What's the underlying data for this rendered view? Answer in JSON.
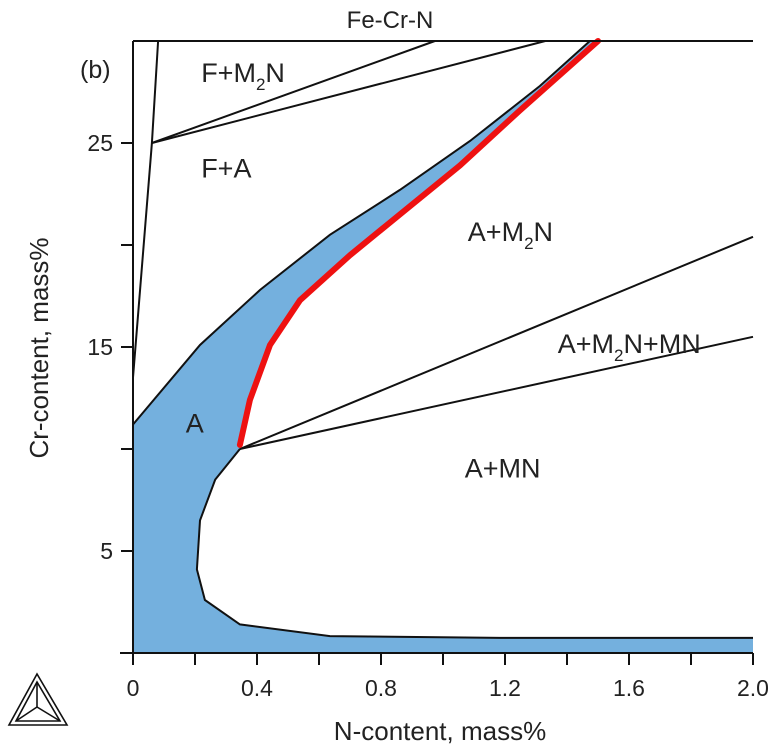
{
  "chart_data": {
    "type": "line",
    "title": "Fe-Cr-N",
    "panel_label": "(b)",
    "xlabel": "N-content, mass%",
    "ylabel": "Cr-content, mass%",
    "xlim": [
      0,
      2.0
    ],
    "ylim": [
      0,
      30
    ],
    "x_ticks": [
      0,
      0.2,
      0.4,
      0.6,
      0.8,
      1.0,
      1.2,
      1.4,
      1.6,
      1.8,
      2.0
    ],
    "x_tick_labels": [
      "0",
      "0.4",
      "0.8",
      "1.2",
      "1.6",
      "2.0"
    ],
    "x_tick_label_values": [
      0,
      0.4,
      0.8,
      1.2,
      1.6,
      2.0
    ],
    "y_ticks": [
      5,
      10,
      15,
      20,
      25
    ],
    "y_tick_labels": [
      "5",
      "15",
      "25"
    ],
    "y_tick_label_values": [
      5,
      15,
      25
    ],
    "grid": false,
    "colors": {
      "austenite_fill": "#74b0de",
      "highlight_line": "#ee1111",
      "line": "#111111"
    },
    "austenite_region": {
      "upper_boundary": [
        [
          0,
          11.2
        ],
        [
          0.216,
          15.1
        ],
        [
          0.41,
          17.8
        ],
        [
          0.635,
          20.5
        ],
        [
          0.861,
          22.7
        ],
        [
          1.087,
          25.1
        ],
        [
          1.313,
          27.8
        ],
        [
          1.474,
          30
        ]
      ],
      "lower_boundary": [
        [
          0.345,
          10.0
        ],
        [
          0.265,
          8.5
        ],
        [
          0.216,
          6.5
        ],
        [
          0.206,
          4.1
        ],
        [
          0.232,
          2.6
        ],
        [
          0.345,
          1.4
        ],
        [
          0.635,
          0.83
        ],
        [
          1.184,
          0.74
        ],
        [
          2.0,
          0.74
        ]
      ]
    },
    "red_line": [
      [
        0.345,
        10.2
      ],
      [
        0.377,
        12.4
      ],
      [
        0.442,
        15.1
      ],
      [
        0.539,
        17.3
      ],
      [
        0.7,
        19.5
      ],
      [
        0.861,
        21.5
      ],
      [
        1.055,
        23.9
      ],
      [
        1.248,
        26.6
      ],
      [
        1.5,
        30
      ]
    ],
    "boundary_lines": [
      [
        [
          0,
          13.5
        ],
        [
          0.061,
          25
        ],
        [
          0.081,
          30
        ]
      ],
      [
        [
          0.061,
          25
        ],
        [
          0.974,
          30
        ]
      ],
      [
        [
          0.061,
          25
        ],
        [
          1.33,
          30
        ]
      ],
      [
        [
          0.345,
          10.0
        ],
        [
          2.0,
          20.4
        ]
      ],
      [
        [
          0.345,
          10.0
        ],
        [
          2.0,
          15.5
        ]
      ]
    ],
    "region_labels": [
      {
        "name": "f-m2n",
        "main": "F+M",
        "sub": "2",
        "tail": "N",
        "at": [
          0.22,
          28
        ]
      },
      {
        "name": "f-a",
        "main": "F+A",
        "sub": "",
        "tail": "",
        "at": [
          0.22,
          23.3
        ]
      },
      {
        "name": "a-m2n",
        "main": "A+M",
        "sub": "2",
        "tail": "N",
        "at": [
          1.08,
          20.2
        ]
      },
      {
        "name": "a-m2n-mn",
        "main": "A+M",
        "sub": "2",
        "tail": "N+MN",
        "at": [
          1.37,
          14.7
        ]
      },
      {
        "name": "a-mn",
        "main": "A+MN",
        "sub": "",
        "tail": "",
        "at": [
          1.07,
          8.6
        ]
      },
      {
        "name": "a",
        "main": "A",
        "sub": "",
        "tail": "",
        "at": [
          0.17,
          10.8
        ]
      }
    ]
  }
}
